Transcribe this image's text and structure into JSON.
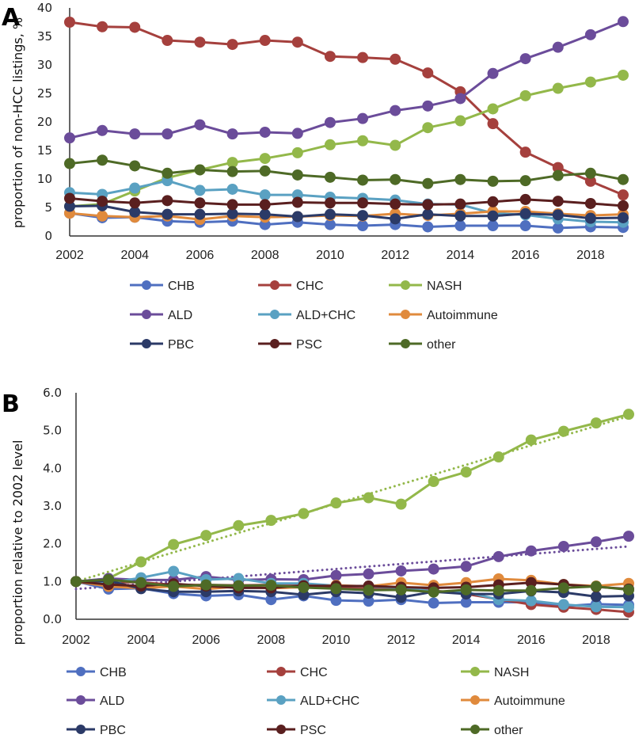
{
  "chart_data": [
    {
      "type": "line",
      "panel_label": "A",
      "title": "",
      "xlabel": "",
      "ylabel": "proportion of non-HCC listings, %",
      "x": [
        2002,
        2003,
        2004,
        2005,
        2006,
        2007,
        2008,
        2009,
        2010,
        2011,
        2012,
        2013,
        2014,
        2015,
        2016,
        2017,
        2018,
        2019
      ],
      "xticks": [
        "2002",
        "2004",
        "2006",
        "2008",
        "2010",
        "2012",
        "2014",
        "2016",
        "2018"
      ],
      "xlim": [
        2002,
        2019
      ],
      "ylim": [
        0,
        40
      ],
      "yticks": [
        "0",
        "5",
        "10",
        "15",
        "20",
        "25",
        "30",
        "35",
        "40"
      ],
      "grid": false,
      "legend": "bottom",
      "series": [
        {
          "name": "CHB",
          "color": "#4f6fc0",
          "values": [
            4.0,
            3.2,
            3.3,
            2.6,
            2.4,
            2.6,
            2.0,
            2.4,
            2.0,
            1.8,
            2.0,
            1.6,
            1.8,
            1.8,
            1.8,
            1.4,
            1.6,
            1.5
          ]
        },
        {
          "name": "CHC",
          "color": "#a5403d",
          "values": [
            37.5,
            36.7,
            36.6,
            34.3,
            34.0,
            33.6,
            34.3,
            34.0,
            31.5,
            31.3,
            31.0,
            28.6,
            25.3,
            19.7,
            14.7,
            12.0,
            9.6,
            7.2
          ]
        },
        {
          "name": "NASH",
          "color": "#93b84a",
          "values": [
            5.2,
            5.6,
            7.9,
            10.2,
            11.6,
            12.9,
            13.6,
            14.6,
            16.0,
            16.7,
            15.9,
            19.0,
            20.2,
            22.3,
            24.6,
            25.9,
            27.0,
            28.2
          ]
        },
        {
          "name": "ALD",
          "color": "#6b4c9a",
          "values": [
            17.2,
            18.5,
            17.9,
            17.9,
            19.5,
            17.9,
            18.2,
            18.0,
            19.9,
            20.6,
            22.0,
            22.8,
            24.1,
            28.5,
            31.1,
            33.1,
            35.3,
            37.6
          ]
        },
        {
          "name": "ALD+CHC",
          "color": "#5aa1c2",
          "values": [
            7.6,
            7.3,
            8.4,
            9.7,
            8.0,
            8.2,
            7.2,
            7.2,
            6.8,
            6.6,
            6.3,
            5.6,
            5.5,
            4.0,
            3.7,
            3.0,
            2.5,
            2.4
          ]
        },
        {
          "name": "Autoimmune",
          "color": "#e08a3c",
          "values": [
            4.0,
            3.5,
            3.3,
            3.5,
            2.9,
            3.5,
            3.3,
            3.4,
            3.6,
            3.5,
            3.9,
            3.6,
            3.9,
            4.3,
            4.3,
            3.9,
            3.6,
            3.8
          ]
        },
        {
          "name": "PBC",
          "color": "#2b3a67",
          "values": [
            5.2,
            5.3,
            4.2,
            3.8,
            3.8,
            3.9,
            3.8,
            3.4,
            3.8,
            3.6,
            3.0,
            3.8,
            3.5,
            3.5,
            3.9,
            3.7,
            3.1,
            3.2
          ]
        },
        {
          "name": "PSC",
          "color": "#5a1f1f",
          "values": [
            6.6,
            6.1,
            5.8,
            6.2,
            5.8,
            5.5,
            5.5,
            5.9,
            5.8,
            5.8,
            5.6,
            5.5,
            5.6,
            6.0,
            6.4,
            6.1,
            5.7,
            5.3
          ]
        },
        {
          "name": "other",
          "color": "#4e6a26",
          "values": [
            12.7,
            13.3,
            12.3,
            11.0,
            11.6,
            11.3,
            11.4,
            10.7,
            10.3,
            9.8,
            9.9,
            9.2,
            9.9,
            9.6,
            9.7,
            10.6,
            11.0,
            9.9
          ]
        }
      ]
    },
    {
      "type": "line",
      "panel_label": "B",
      "title": "",
      "xlabel": "",
      "ylabel": "proportion relative to 2002 level",
      "x": [
        2002,
        2003,
        2004,
        2005,
        2006,
        2007,
        2008,
        2009,
        2010,
        2011,
        2012,
        2013,
        2014,
        2015,
        2016,
        2017,
        2018,
        2019
      ],
      "xticks": [
        "2002",
        "2004",
        "2006",
        "2008",
        "2010",
        "2012",
        "2014",
        "2016",
        "2018"
      ],
      "xlim": [
        2002,
        2019
      ],
      "ylim": [
        0,
        6
      ],
      "yticks": [
        "0.0",
        "1.0",
        "2.0",
        "3.0",
        "4.0",
        "5.0",
        "6.0"
      ],
      "grid": false,
      "legend": "bottom",
      "series": [
        {
          "name": "CHB",
          "color": "#4f6fc0",
          "values": [
            1.0,
            0.8,
            0.82,
            0.68,
            0.62,
            0.65,
            0.52,
            0.62,
            0.5,
            0.48,
            0.52,
            0.43,
            0.45,
            0.45,
            0.45,
            0.35,
            0.4,
            0.38
          ]
        },
        {
          "name": "CHC",
          "color": "#a5403d",
          "values": [
            1.0,
            0.98,
            0.98,
            0.91,
            0.91,
            0.9,
            0.91,
            0.91,
            0.84,
            0.83,
            0.83,
            0.76,
            0.67,
            0.53,
            0.39,
            0.32,
            0.26,
            0.19
          ]
        },
        {
          "name": "NASH",
          "color": "#93b84a",
          "values": [
            1.0,
            1.08,
            1.52,
            1.98,
            2.22,
            2.48,
            2.62,
            2.8,
            3.08,
            3.22,
            3.05,
            3.65,
            3.9,
            4.3,
            4.75,
            4.98,
            5.2,
            5.43
          ]
        },
        {
          "name": "ALD",
          "color": "#6b4c9a",
          "values": [
            1.0,
            1.08,
            1.04,
            1.04,
            1.13,
            1.04,
            1.06,
            1.05,
            1.16,
            1.2,
            1.28,
            1.33,
            1.4,
            1.66,
            1.81,
            1.93,
            2.05,
            2.2
          ]
        },
        {
          "name": "ALD+CHC",
          "color": "#5aa1c2",
          "values": [
            1.0,
            0.96,
            1.1,
            1.27,
            1.05,
            1.08,
            0.95,
            0.95,
            0.89,
            0.87,
            0.83,
            0.74,
            0.72,
            0.52,
            0.49,
            0.39,
            0.33,
            0.32
          ]
        },
        {
          "name": "Autoimmune",
          "color": "#e08a3c",
          "values": [
            1.0,
            0.87,
            0.82,
            0.87,
            0.8,
            0.87,
            0.82,
            0.85,
            0.9,
            0.87,
            0.97,
            0.9,
            0.97,
            1.07,
            1.03,
            0.92,
            0.88,
            0.95
          ]
        },
        {
          "name": "PBC",
          "color": "#2b3a67",
          "values": [
            1.0,
            1.02,
            0.81,
            0.73,
            0.73,
            0.75,
            0.73,
            0.65,
            0.73,
            0.69,
            0.58,
            0.73,
            0.67,
            0.67,
            0.75,
            0.71,
            0.6,
            0.62
          ]
        },
        {
          "name": "PSC",
          "color": "#5a1f1f",
          "values": [
            1.0,
            0.92,
            0.88,
            0.94,
            0.88,
            0.83,
            0.83,
            0.89,
            0.88,
            0.88,
            0.85,
            0.83,
            0.85,
            0.91,
            0.97,
            0.92,
            0.86,
            0.8
          ]
        },
        {
          "name": "other",
          "color": "#4e6a26",
          "values": [
            1.0,
            1.05,
            0.97,
            0.87,
            0.91,
            0.89,
            0.9,
            0.84,
            0.81,
            0.77,
            0.78,
            0.72,
            0.78,
            0.76,
            0.76,
            0.83,
            0.87,
            0.78
          ]
        }
      ],
      "trendlines": [
        {
          "name": "NASH linear trend",
          "color": "#93b84a",
          "style": "dotted",
          "start": [
            2002,
            1.0
          ],
          "end": [
            2019,
            5.38
          ]
        },
        {
          "name": "ALD linear trend",
          "color": "#6b4c9a",
          "style": "dotted",
          "start": [
            2002,
            0.8
          ],
          "end": [
            2019,
            1.93
          ]
        }
      ]
    }
  ]
}
